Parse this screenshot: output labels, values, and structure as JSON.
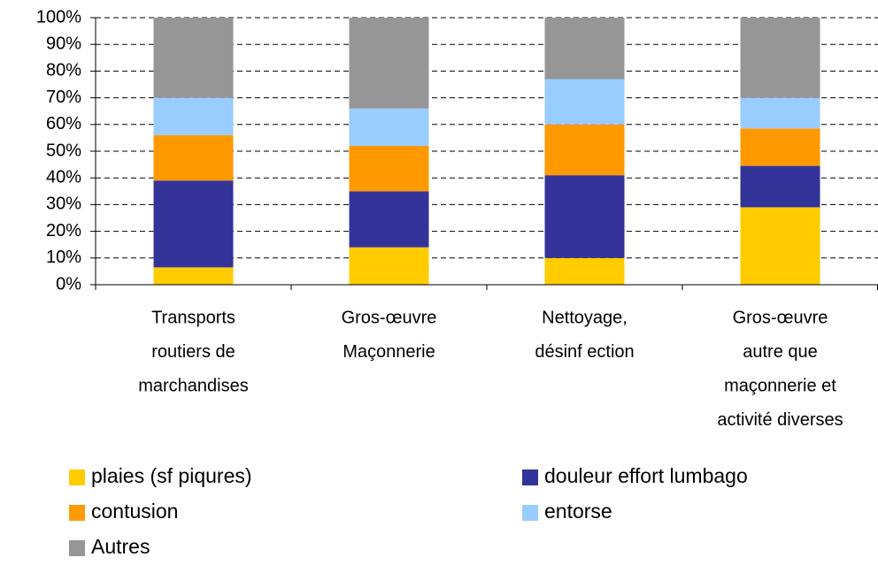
{
  "chart_data": {
    "type": "stacked_bar",
    "categories": [
      [
        "Transports",
        "routiers de",
        "marchandises"
      ],
      [
        "Gros-œuvre",
        "Maçonnerie"
      ],
      [
        "Nettoyage,",
        "désinf ection"
      ],
      [
        "Gros-œuvre",
        "autre que",
        "maçonnerie et",
        "activité diverses"
      ]
    ],
    "series": [
      {
        "name": "plaies (sf piqures)",
        "color": "#ffcc00",
        "values": [
          6.5,
          14,
          10,
          29
        ]
      },
      {
        "name": "douleur effort lumbago",
        "color": "#333399",
        "values": [
          32.5,
          21,
          31,
          15.5
        ]
      },
      {
        "name": "contusion",
        "color": "#ff9900",
        "values": [
          17,
          17,
          19,
          14
        ]
      },
      {
        "name": "entorse",
        "color": "#99ccff",
        "values": [
          14,
          14,
          17,
          11.5
        ]
      },
      {
        "name": "Autres",
        "color": "#969696",
        "values": [
          30,
          34,
          23,
          30
        ]
      }
    ],
    "ylim": [
      0,
      100
    ],
    "yticks": [
      {
        "value": 0,
        "label": "0%"
      },
      {
        "value": 10,
        "label": "10%"
      },
      {
        "value": 20,
        "label": "20%"
      },
      {
        "value": 30,
        "label": "30%"
      },
      {
        "value": 40,
        "label": "40%"
      },
      {
        "value": 50,
        "label": "50%"
      },
      {
        "value": 60,
        "label": "60%"
      },
      {
        "value": 70,
        "label": "70%"
      },
      {
        "value": 80,
        "label": "80%"
      },
      {
        "value": 90,
        "label": "90%"
      },
      {
        "value": 100,
        "label": "100%"
      }
    ],
    "grid": true
  }
}
